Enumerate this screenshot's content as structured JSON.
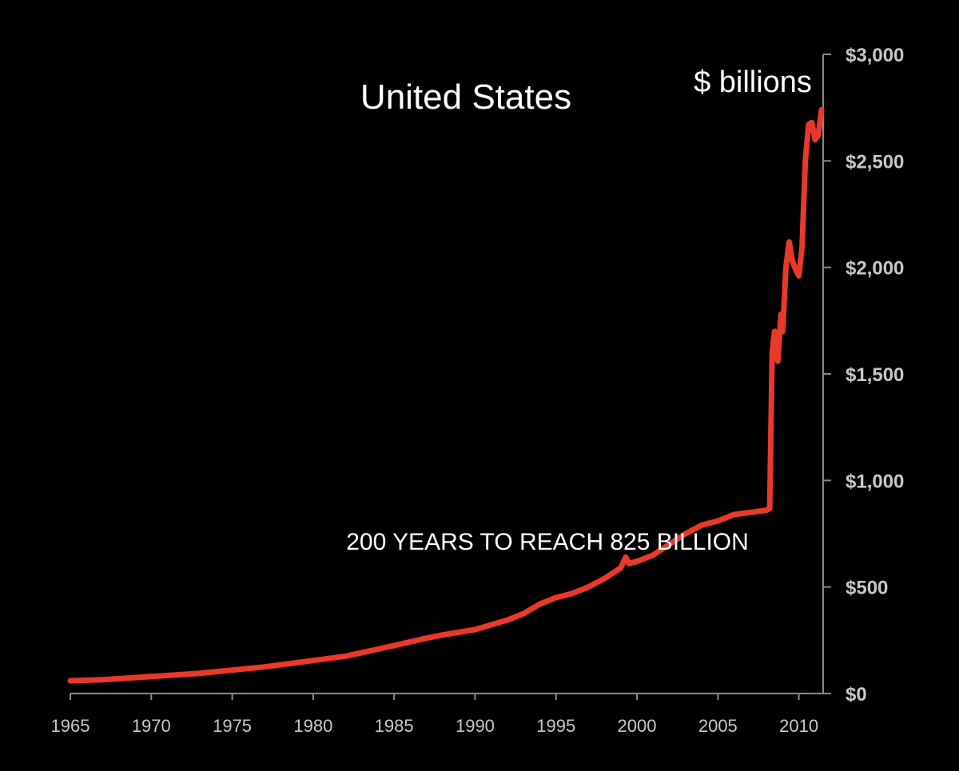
{
  "chart_data": {
    "type": "line",
    "title": "United States",
    "unit_label": "$ billions",
    "annotation": "200 YEARS TO REACH 825 BILLION",
    "xlabel": "",
    "ylabel": "",
    "xlim": [
      1965,
      2011.5
    ],
    "ylim": [
      0,
      3000
    ],
    "x_ticks": [
      1965,
      1970,
      1975,
      1980,
      1985,
      1990,
      1995,
      2000,
      2005,
      2010
    ],
    "x_tick_labels": [
      "1965",
      "1970",
      "1975",
      "1980",
      "1985",
      "1990",
      "1995",
      "2000",
      "2005",
      "2010"
    ],
    "y_ticks": [
      0,
      500,
      1000,
      1500,
      2000,
      2500,
      3000
    ],
    "y_tick_labels": [
      "$0",
      "$500",
      "$1,000",
      "$1,500",
      "$2,000",
      "$2,500",
      "$3,000"
    ],
    "y_axis_side": "right",
    "grid": false,
    "series": [
      {
        "name": "United States",
        "color": "#e8392b",
        "x": [
          1965,
          1967,
          1970,
          1973,
          1975,
          1977,
          1980,
          1982,
          1985,
          1987,
          1988,
          1990,
          1992,
          1993,
          1994,
          1995,
          1996,
          1997,
          1998,
          1999,
          1999.3,
          1999.5,
          2000,
          2001,
          2002,
          2003,
          2004,
          2005,
          2006,
          2007,
          2008,
          2008.2,
          2008.35,
          2008.5,
          2008.7,
          2008.9,
          2009.0,
          2009.2,
          2009.4,
          2009.6,
          2009.8,
          2010.0,
          2010.2,
          2010.4,
          2010.6,
          2010.8,
          2011.0,
          2011.2,
          2011.4
        ],
        "y": [
          60,
          65,
          80,
          95,
          110,
          125,
          155,
          175,
          225,
          260,
          275,
          300,
          345,
          375,
          420,
          450,
          470,
          500,
          540,
          590,
          640,
          610,
          620,
          650,
          700,
          750,
          790,
          810,
          840,
          850,
          860,
          870,
          1600,
          1700,
          1560,
          1780,
          1700,
          2000,
          2120,
          2030,
          1990,
          1960,
          2100,
          2500,
          2670,
          2680,
          2600,
          2620,
          2740
        ]
      }
    ]
  }
}
